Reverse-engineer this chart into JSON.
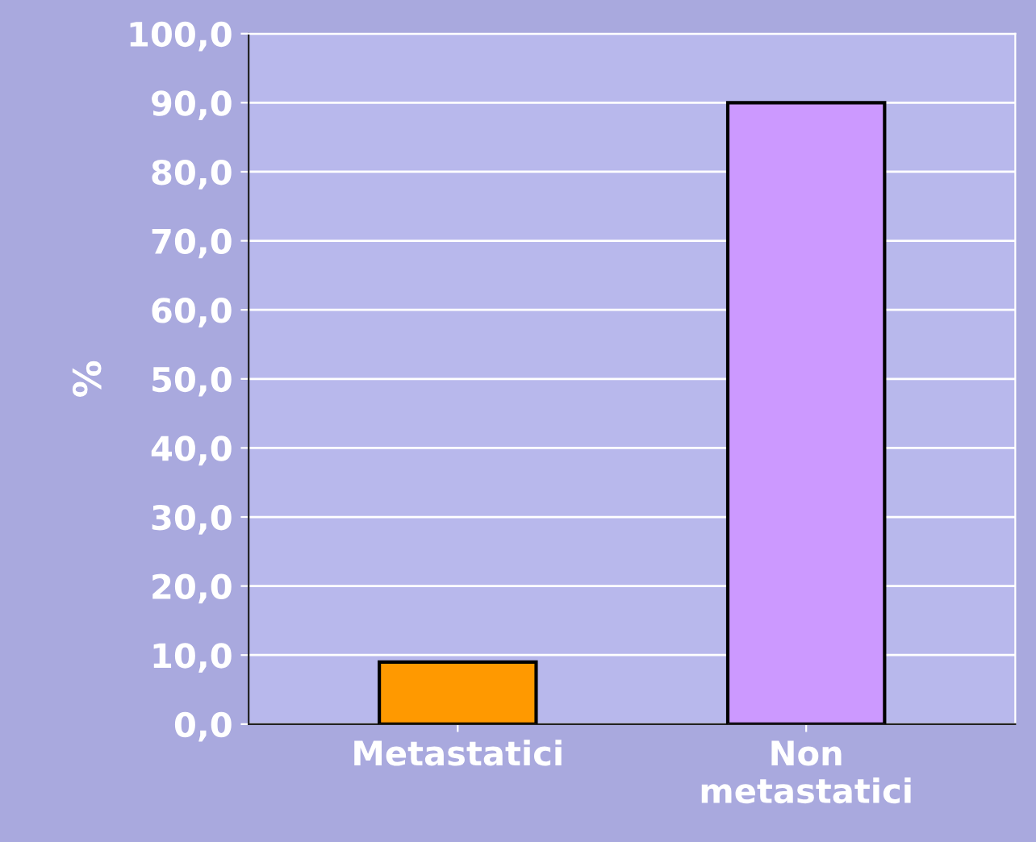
{
  "chart_data": {
    "type": "bar",
    "ylabel": "%",
    "categories": [
      "Metastatici",
      "Non\nmetastatici"
    ],
    "values": [
      9,
      90
    ],
    "colors": [
      "#ff9900",
      "#cc99ff"
    ],
    "ylim": [
      0,
      100
    ],
    "yticks": [
      {
        "value": 0,
        "label": "0,0"
      },
      {
        "value": 10,
        "label": "10,0"
      },
      {
        "value": 20,
        "label": "20,0"
      },
      {
        "value": 30,
        "label": "30,0"
      },
      {
        "value": 40,
        "label": "40,0"
      },
      {
        "value": 50,
        "label": "50,0"
      },
      {
        "value": 60,
        "label": "60,0"
      },
      {
        "value": 70,
        "label": "70,0"
      },
      {
        "value": 80,
        "label": "80,0"
      },
      {
        "value": 90,
        "label": "90,0"
      },
      {
        "value": 100,
        "label": "100,0"
      }
    ],
    "grid": "y"
  }
}
